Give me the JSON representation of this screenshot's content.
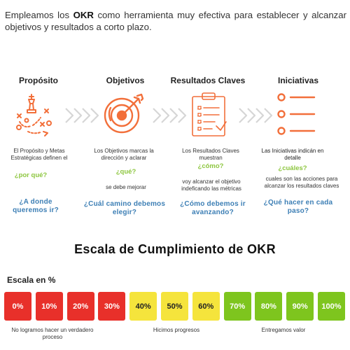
{
  "intro": {
    "before": "Empleamos  los ",
    "bold": "OKR",
    "after": " como herramienta muy efectiva para establecer y alcanzar objetivos  y resultados a corto plazo."
  },
  "columns": [
    {
      "title": "Propósito",
      "icon": "chess-strategy-icon",
      "desc": "El Propósito y Metas Estratégicas definen el",
      "green": "¿por qué?",
      "blue": "¿A donde queremos ir?"
    },
    {
      "title": "Objetivos",
      "icon": "target-arrow-icon",
      "desc": "Los Objetivos marcas la dirección y aclarar",
      "green": "¿qué?",
      "desc2": "se debe mejorar",
      "blue": "¿Cuál camino debemos elegir?"
    },
    {
      "title": "Resultados Claves",
      "icon": "clipboard-checklist-icon",
      "desc": "Los Resultados Claves muestran",
      "green": "¿cómo?",
      "desc2": "voy alcanzar el objetivo indeficando las métricas",
      "blue": "¿Cómo debemos ir avanzando?"
    },
    {
      "title": "Iniciativas",
      "icon": "list-bullets-icon",
      "desc": "Las Iniciativas indicán en detalle",
      "green": "¿cuáles?",
      "desc2": "cuales son las acciones para alcanzar los resultados claves",
      "blue": "¿Qué hacer en cada paso?"
    }
  ],
  "scale": {
    "title": "Escala de Cumplimiento de OKR",
    "label": "Escala en %",
    "boxes": [
      {
        "label": "0%",
        "level": 0,
        "color": "#e8302a",
        "text": "#ffffff"
      },
      {
        "label": "10%",
        "level": 10,
        "color": "#e8302a",
        "text": "#ffffff"
      },
      {
        "label": "20%",
        "level": 20,
        "color": "#e8302a",
        "text": "#ffffff"
      },
      {
        "label": "30%",
        "level": 30,
        "color": "#e8302a",
        "text": "#ffffff"
      },
      {
        "label": "40%",
        "level": 40,
        "color": "#f5e43c",
        "text": "#222222"
      },
      {
        "label": "50%",
        "level": 50,
        "color": "#f5e43c",
        "text": "#222222"
      },
      {
        "label": "60%",
        "level": 60,
        "color": "#f5e43c",
        "text": "#222222"
      },
      {
        "label": "70%",
        "level": 70,
        "color": "#7ec51e",
        "text": "#ffffff"
      },
      {
        "label": "80%",
        "level": 80,
        "color": "#7ec51e",
        "text": "#ffffff"
      },
      {
        "label": "90%",
        "level": 90,
        "color": "#7ec51e",
        "text": "#ffffff"
      },
      {
        "label": "100%",
        "level": 100,
        "color": "#7ec51e",
        "text": "#ffffff"
      }
    ],
    "bottom_labels": [
      "No logramos hacer un verdadero proceso",
      "Hicimos progresos",
      "Entregamos valor"
    ]
  },
  "colors": {
    "icon_orange": "#f26f3a",
    "arrow_gray": "#d6d6d6",
    "green_question": "#8dc63f",
    "blue_question": "#3d7fb5"
  }
}
